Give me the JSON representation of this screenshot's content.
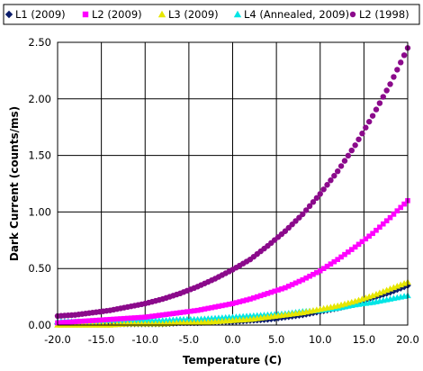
{
  "chart_data": {
    "type": "scatter",
    "xlabel": "Temperature (C)",
    "ylabel": "Dark Current (counts/ms)",
    "xlim": [
      -20,
      20
    ],
    "ylim": [
      0,
      2.5
    ],
    "x_ticks": [
      -20,
      -15,
      -10,
      -5,
      0,
      5,
      10,
      15,
      20
    ],
    "x_tick_labels": [
      "-20.0",
      "-15.0",
      "-10.0",
      "-5.0",
      "0.0",
      "5.0",
      "10.0",
      "15.0",
      "20.0"
    ],
    "y_ticks": [
      0,
      0.5,
      1.0,
      1.5,
      2.0,
      2.5
    ],
    "y_tick_labels": [
      "0.00",
      "0.50",
      "1.00",
      "1.50",
      "2.00",
      "2.50"
    ],
    "grid": true,
    "legend_position": "top",
    "series": [
      {
        "name": "L1 (2009)",
        "color": "#0b1d6b",
        "marker": "diamond",
        "x": [
          -20,
          -18,
          -16,
          -14,
          -12,
          -10,
          -8,
          -6,
          -4,
          -2,
          0,
          2,
          4,
          6,
          8,
          10,
          12,
          14,
          16,
          18,
          20
        ],
        "y": [
          0.01,
          0.01,
          0.01,
          0.01,
          0.01,
          0.01,
          0.01,
          0.02,
          0.02,
          0.03,
          0.03,
          0.04,
          0.05,
          0.07,
          0.09,
          0.12,
          0.15,
          0.19,
          0.24,
          0.29,
          0.35
        ]
      },
      {
        "name": "L2 (2009)",
        "color": "#ff00ff",
        "marker": "square",
        "x": [
          -20,
          -18,
          -16,
          -14,
          -12,
          -10,
          -8,
          -6,
          -4,
          -2,
          0,
          2,
          4,
          6,
          8,
          10,
          12,
          14,
          16,
          18,
          20
        ],
        "y": [
          0.02,
          0.03,
          0.04,
          0.05,
          0.06,
          0.07,
          0.09,
          0.11,
          0.13,
          0.16,
          0.19,
          0.23,
          0.28,
          0.33,
          0.4,
          0.48,
          0.58,
          0.69,
          0.81,
          0.95,
          1.1
        ]
      },
      {
        "name": "L3 (2009)",
        "color": "#e6e600",
        "marker": "triangle",
        "x": [
          -20,
          -18,
          -16,
          -14,
          -12,
          -10,
          -8,
          -6,
          -4,
          -2,
          0,
          2,
          4,
          6,
          8,
          10,
          12,
          14,
          16,
          18,
          20
        ],
        "y": [
          0.0,
          0.0,
          0.0,
          0.0,
          0.01,
          0.01,
          0.01,
          0.02,
          0.02,
          0.03,
          0.04,
          0.05,
          0.07,
          0.09,
          0.11,
          0.14,
          0.17,
          0.21,
          0.26,
          0.32,
          0.38
        ]
      },
      {
        "name": "L4 (Annealed, 2009)",
        "color": "#00e5e5",
        "marker": "triangle",
        "x": [
          -20,
          -18,
          -16,
          -14,
          -12,
          -10,
          -8,
          -6,
          -4,
          -2,
          0,
          2,
          4,
          6,
          8,
          10,
          12,
          14,
          16,
          18,
          20
        ],
        "y": [
          0.03,
          0.03,
          0.03,
          0.04,
          0.04,
          0.04,
          0.04,
          0.05,
          0.05,
          0.06,
          0.07,
          0.08,
          0.09,
          0.1,
          0.12,
          0.13,
          0.15,
          0.18,
          0.2,
          0.23,
          0.26
        ]
      },
      {
        "name": "L2 (1998)",
        "color": "#8b0a8b",
        "marker": "circle",
        "x": [
          -20,
          -18,
          -16,
          -14,
          -12,
          -10,
          -8,
          -6,
          -4,
          -2,
          0,
          2,
          4,
          6,
          8,
          10,
          12,
          14,
          16,
          18,
          20
        ],
        "y": [
          0.08,
          0.09,
          0.11,
          0.13,
          0.16,
          0.19,
          0.23,
          0.28,
          0.34,
          0.41,
          0.49,
          0.58,
          0.7,
          0.83,
          0.98,
          1.16,
          1.36,
          1.59,
          1.85,
          2.13,
          2.45
        ]
      }
    ]
  }
}
